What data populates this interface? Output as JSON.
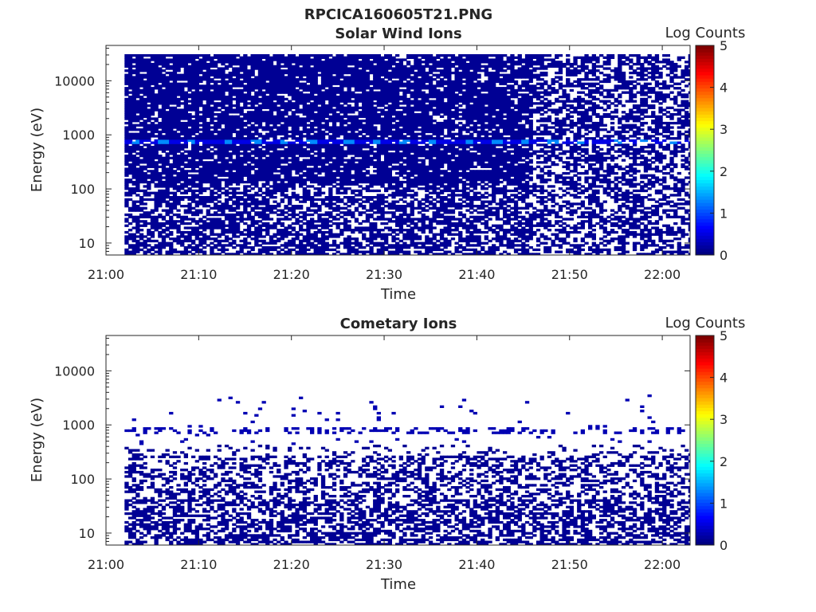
{
  "figure_title": "RPCICA160605T21.PNG",
  "colorbar": {
    "label": "Log Counts",
    "ticks": [
      0,
      1,
      2,
      3,
      4,
      5
    ],
    "colormap": "jet"
  },
  "chart_data": [
    {
      "type": "heatmap",
      "title": "Solar Wind Ions",
      "xlabel": "Time",
      "ylabel": "Energy (eV)",
      "xlim": [
        "21:00",
        "22:03"
      ],
      "ylim": [
        6,
        45000
      ],
      "yscale": "log",
      "xticks": [
        "21:00",
        "21:10",
        "21:20",
        "21:30",
        "21:40",
        "21:50",
        "22:00"
      ],
      "yticks": [
        10,
        100,
        1000,
        10000
      ],
      "data_start": "21:02",
      "data_end": "22:03",
      "colorbar_range": [
        0,
        5
      ],
      "profile": {
        "note_energy": "counts present from ~6 eV up to ~30000 eV",
        "energy_range": [
          6,
          30000
        ],
        "dense_below_time": "21:46",
        "peak_energy": 730,
        "peak_log_counts": 1.3,
        "peak_times": [
          "21:03",
          "21:06",
          "21:09",
          "21:13",
          "21:16",
          "21:19",
          "21:22",
          "21:26",
          "21:29",
          "21:32",
          "21:35",
          "21:39",
          "21:42",
          "21:45",
          "21:48",
          "21:51",
          "21:55",
          "21:58",
          "22:01"
        ]
      }
    },
    {
      "type": "heatmap",
      "title": "Cometary Ions",
      "xlabel": "Time",
      "ylabel": "Energy (eV)",
      "xlim": [
        "21:00",
        "22:03"
      ],
      "ylim": [
        6,
        45000
      ],
      "yscale": "log",
      "xticks": [
        "21:00",
        "21:10",
        "21:20",
        "21:30",
        "21:40",
        "21:50",
        "22:00"
      ],
      "yticks": [
        10,
        100,
        1000,
        10000
      ],
      "data_start": "21:02",
      "data_end": "22:03",
      "colorbar_range": [
        0,
        5
      ],
      "profile": {
        "energy_range": [
          6,
          400
        ],
        "sparse_band_energy": 730,
        "peak_log_counts": 0.3
      }
    }
  ]
}
